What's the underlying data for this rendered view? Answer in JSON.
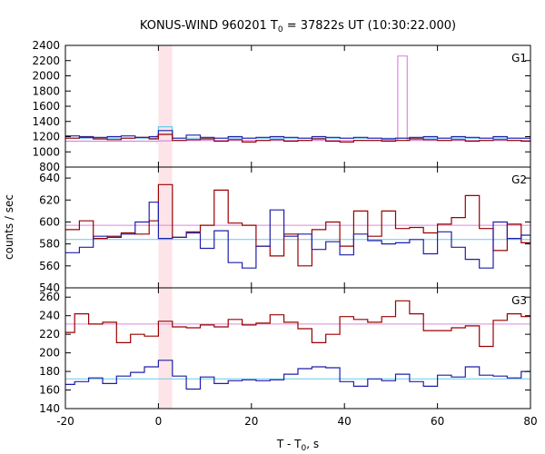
{
  "chart_data": {
    "type": "line",
    "title": "KONUS-WIND 960201 T",
    "title_sub": "0",
    "title_rest": " = 37822s UT (10:30:22.000)",
    "xlabel": "T - T",
    "xlabel_sub": "0",
    "xlabel_rest": ", s",
    "ylabel": "counts / sec",
    "xlim": [
      -20,
      80
    ],
    "x_ticks": [
      -20,
      0,
      20,
      40,
      60,
      80
    ],
    "x_tick_labels": [
      "-20",
      "0",
      "20",
      "40",
      "60",
      "80"
    ],
    "highlight_band": [
      0,
      2.944
    ],
    "highlight_color": "#fde4e8",
    "colors": {
      "red": "#990000",
      "blue": "#1f1fa8",
      "light_blue": "#66ccee",
      "pink": "#dd88dd"
    },
    "panels": [
      {
        "label": "G1",
        "ylim": [
          800,
          2400
        ],
        "y_ticks": [
          800,
          1000,
          1200,
          1400,
          1600,
          1800,
          2000,
          2200,
          2400
        ],
        "y_tick_labels": [
          "800",
          "1000",
          "1200",
          "1400",
          "1600",
          "1800",
          "2000",
          "2200",
          "2400"
        ],
        "series": [
          {
            "color": "#66ccee",
            "kind": "step",
            "edges": [
              -20,
              -0.512,
              -0.256,
              0,
              2.944,
              51.456,
              53.504,
              80
            ],
            "values": [
              1180,
              1190,
              1220,
              1330,
              1180,
              1180,
              1180
            ]
          },
          {
            "color": "#dd88dd",
            "kind": "step",
            "edges": [
              -20,
              0,
              2.944,
              51.456,
              53.504,
              80
            ],
            "values": [
              1140,
              1145,
              1150,
              2260,
              1150
            ]
          },
          {
            "color": "#1f1fa8",
            "kind": "step",
            "edges": [
              -20,
              -17,
              -14,
              -11,
              -8,
              -5,
              -2,
              0,
              3,
              6,
              9,
              12,
              15,
              18,
              21,
              24,
              27,
              30,
              33,
              36,
              39,
              42,
              45,
              48,
              51,
              54,
              57,
              60,
              63,
              66,
              69,
              72,
              75,
              78,
              80
            ],
            "values": [
              1210,
              1200,
              1190,
              1200,
              1210,
              1190,
              1200,
              1280,
              1180,
              1220,
              1190,
              1180,
              1200,
              1180,
              1190,
              1200,
              1190,
              1180,
              1200,
              1190,
              1180,
              1190,
              1180,
              1170,
              1180,
              1190,
              1200,
              1180,
              1200,
              1190,
              1180,
              1200,
              1180,
              1180
            ]
          },
          {
            "color": "#990000",
            "kind": "step",
            "edges": [
              -20,
              -17,
              -14,
              -11,
              -8,
              -5,
              -2,
              0,
              3,
              6,
              9,
              12,
              15,
              18,
              21,
              24,
              27,
              30,
              33,
              36,
              39,
              42,
              45,
              48,
              51,
              54,
              57,
              60,
              63,
              66,
              69,
              72,
              75,
              78,
              80
            ],
            "values": [
              1180,
              1190,
              1170,
              1160,
              1180,
              1190,
              1170,
              1230,
              1150,
              1160,
              1170,
              1140,
              1160,
              1130,
              1150,
              1160,
              1140,
              1150,
              1170,
              1140,
              1130,
              1150,
              1150,
              1140,
              1150,
              1170,
              1160,
              1150,
              1160,
              1140,
              1150,
              1160,
              1150,
              1140
            ]
          }
        ]
      },
      {
        "label": "G2",
        "ylim": [
          540,
          650
        ],
        "y_ticks": [
          540,
          560,
          580,
          600,
          620,
          640
        ],
        "y_tick_labels": [
          "540",
          "560",
          "580",
          "600",
          "620",
          "640"
        ],
        "series": [
          {
            "color": "#dd88dd",
            "kind": "hline",
            "y": 597
          },
          {
            "color": "#66ccee",
            "kind": "hline",
            "y": 584
          },
          {
            "color": "#990000",
            "kind": "step",
            "edges": [
              -20,
              -17,
              -14,
              -11,
              -8,
              -5,
              -2,
              0,
              3,
              6,
              9,
              12,
              15,
              18,
              21,
              24,
              27,
              30,
              33,
              36,
              39,
              42,
              45,
              48,
              51,
              54,
              57,
              60,
              63,
              66,
              69,
              72,
              75,
              78,
              80
            ],
            "values": [
              593,
              601,
              585,
              587,
              590,
              589,
              601,
              634,
              586,
              591,
              597,
              629,
              599,
              597,
              578,
              569,
              589,
              560,
              593,
              600,
              578,
              610,
              587,
              610,
              594,
              595,
              590,
              598,
              604,
              624,
              594,
              574,
              598,
              581
            ]
          },
          {
            "color": "#1f1fa8",
            "kind": "step",
            "edges": [
              -20,
              -17,
              -14,
              -11,
              -8,
              -5,
              -2,
              0,
              3,
              6,
              9,
              12,
              15,
              18,
              21,
              24,
              27,
              30,
              33,
              36,
              39,
              42,
              45,
              48,
              51,
              54,
              57,
              60,
              63,
              66,
              69,
              72,
              75,
              78,
              80
            ],
            "values": [
              572,
              577,
              587,
              586,
              589,
              600,
              618,
              585,
              586,
              590,
              576,
              592,
              563,
              558,
              578,
              611,
              587,
              589,
              575,
              582,
              570,
              589,
              583,
              580,
              581,
              584,
              571,
              591,
              577,
              566,
              558,
              600,
              585,
              588
            ]
          }
        ]
      },
      {
        "label": "G3",
        "ylim": [
          140,
          270
        ],
        "y_ticks": [
          140,
          160,
          180,
          200,
          220,
          240,
          260
        ],
        "y_tick_labels": [
          "140",
          "160",
          "180",
          "200",
          "220",
          "240",
          "260"
        ],
        "series": [
          {
            "color": "#dd88dd",
            "kind": "hline",
            "y": 231
          },
          {
            "color": "#66ccee",
            "kind": "hline",
            "y": 172
          },
          {
            "color": "#990000",
            "kind": "step",
            "edges": [
              -20,
              -18,
              -15,
              -12,
              -9,
              -6,
              -3,
              0,
              3,
              6,
              9,
              12,
              15,
              18,
              21,
              24,
              27,
              30,
              33,
              36,
              39,
              42,
              45,
              48,
              51,
              54,
              57,
              60,
              63,
              66,
              69,
              72,
              75,
              78,
              80
            ],
            "values": [
              222,
              242,
              231,
              233,
              211,
              220,
              218,
              234,
              228,
              227,
              230,
              228,
              236,
              230,
              232,
              241,
              233,
              226,
              211,
              220,
              239,
              236,
              233,
              239,
              256,
              242,
              224,
              224,
              227,
              229,
              207,
              235,
              242,
              239
            ]
          },
          {
            "color": "#1f1fa8",
            "kind": "step",
            "edges": [
              -20,
              -18,
              -15,
              -12,
              -9,
              -6,
              -3,
              0,
              3,
              6,
              9,
              12,
              15,
              18,
              21,
              24,
              27,
              30,
              33,
              36,
              39,
              42,
              45,
              48,
              51,
              54,
              57,
              60,
              63,
              66,
              69,
              72,
              75,
              78,
              80
            ],
            "values": [
              166,
              169,
              173,
              167,
              175,
              179,
              185,
              192,
              175,
              161,
              174,
              167,
              170,
              171,
              170,
              171,
              177,
              183,
              185,
              184,
              169,
              164,
              172,
              170,
              177,
              169,
              164,
              176,
              174,
              185,
              176,
              175,
              173,
              180
            ]
          }
        ]
      }
    ]
  }
}
